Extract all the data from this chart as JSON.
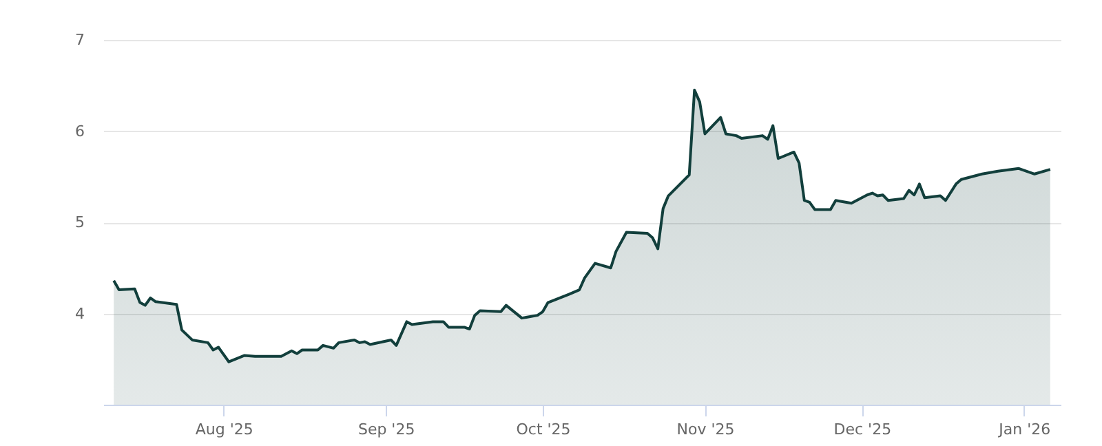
{
  "chart_data": {
    "type": "area",
    "x": [
      "2025-07-11",
      "2025-07-12",
      "2025-07-15",
      "2025-07-16",
      "2025-07-17",
      "2025-07-18",
      "2025-07-19",
      "2025-07-23",
      "2025-07-24",
      "2025-07-26",
      "2025-07-29",
      "2025-07-30",
      "2025-07-31",
      "2025-08-02",
      "2025-08-05",
      "2025-08-07",
      "2025-08-09",
      "2025-08-12",
      "2025-08-14",
      "2025-08-15",
      "2025-08-16",
      "2025-08-19",
      "2025-08-20",
      "2025-08-22",
      "2025-08-23",
      "2025-08-26",
      "2025-08-27",
      "2025-08-28",
      "2025-08-29",
      "2025-09-02",
      "2025-09-03",
      "2025-09-05",
      "2025-09-06",
      "2025-09-10",
      "2025-09-12",
      "2025-09-13",
      "2025-09-16",
      "2025-09-17",
      "2025-09-18",
      "2025-09-19",
      "2025-09-23",
      "2025-09-24",
      "2025-09-27",
      "2025-09-30",
      "2025-10-01",
      "2025-10-02",
      "2025-10-06",
      "2025-10-08",
      "2025-10-09",
      "2025-10-11",
      "2025-10-14",
      "2025-10-15",
      "2025-10-17",
      "2025-10-21",
      "2025-10-22",
      "2025-10-23",
      "2025-10-24",
      "2025-10-25",
      "2025-10-29",
      "2025-10-30",
      "2025-10-31",
      "2025-11-01",
      "2025-11-04",
      "2025-11-05",
      "2025-11-07",
      "2025-11-08",
      "2025-11-12",
      "2025-11-13",
      "2025-11-14",
      "2025-11-15",
      "2025-11-18",
      "2025-11-19",
      "2025-11-20",
      "2025-11-21",
      "2025-11-22",
      "2025-11-25",
      "2025-11-26",
      "2025-11-29",
      "2025-12-02",
      "2025-12-03",
      "2025-12-04",
      "2025-12-05",
      "2025-12-06",
      "2025-12-09",
      "2025-12-10",
      "2025-12-11",
      "2025-12-12",
      "2025-12-13",
      "2025-12-16",
      "2025-12-17",
      "2025-12-19",
      "2025-12-20",
      "2025-12-22",
      "2025-12-24",
      "2025-12-27",
      "2025-12-31",
      "2026-01-03",
      "2026-01-06"
    ],
    "series": [
      {
        "color": "#123f3c",
        "values": [
          4.36,
          4.26,
          4.27,
          4.12,
          4.09,
          4.17,
          4.13,
          4.1,
          3.82,
          3.71,
          3.68,
          3.6,
          3.63,
          3.47,
          3.54,
          3.53,
          3.53,
          3.53,
          3.59,
          3.56,
          3.6,
          3.6,
          3.65,
          3.62,
          3.68,
          3.71,
          3.68,
          3.69,
          3.66,
          3.71,
          3.65,
          3.91,
          3.88,
          3.91,
          3.91,
          3.85,
          3.85,
          3.83,
          3.98,
          4.03,
          4.02,
          4.09,
          3.95,
          3.98,
          4.02,
          4.12,
          4.21,
          4.26,
          4.39,
          4.55,
          4.5,
          4.68,
          4.89,
          4.88,
          4.83,
          4.71,
          5.15,
          5.29,
          5.52,
          6.45,
          6.32,
          5.97,
          6.15,
          5.97,
          5.95,
          5.92,
          5.95,
          5.91,
          6.06,
          5.7,
          5.77,
          5.65,
          5.24,
          5.22,
          5.14,
          5.14,
          5.24,
          5.21,
          5.3,
          5.32,
          5.29,
          5.3,
          5.24,
          5.26,
          5.35,
          5.3,
          5.42,
          5.27,
          5.29,
          5.24,
          5.42,
          5.47,
          5.5,
          5.53,
          5.56,
          5.59,
          5.53,
          5.58
        ]
      }
    ],
    "xlim": [
      "2025-07-09",
      "2026-01-08"
    ],
    "xticks": [
      {
        "value": "2025-08-01",
        "label": "Aug '25"
      },
      {
        "value": "2025-09-01",
        "label": "Sep '25"
      },
      {
        "value": "2025-10-01",
        "label": "Oct '25"
      },
      {
        "value": "2025-11-01",
        "label": "Nov '25"
      },
      {
        "value": "2025-12-01",
        "label": "Dec '25"
      },
      {
        "value": "2026-01-01",
        "label": "Jan '26"
      }
    ],
    "ylim": [
      3,
      7
    ],
    "yticks": [
      4,
      5,
      6,
      7
    ],
    "grid": "y"
  }
}
